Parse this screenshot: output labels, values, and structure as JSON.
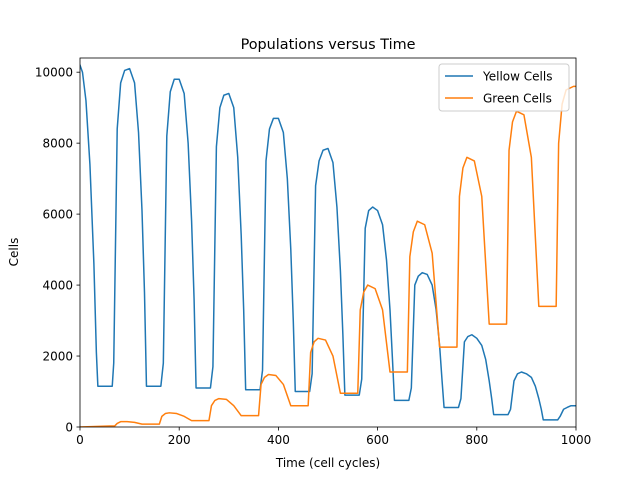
{
  "chart_data": {
    "type": "line",
    "title": "Populations versus Time",
    "xlabel": "Time (cell cycles)",
    "ylabel": "Cells",
    "xlim": [
      0,
      1000
    ],
    "ylim": [
      0,
      10400
    ],
    "xticks": [
      0,
      200,
      400,
      600,
      800,
      1000
    ],
    "xtick_labels": [
      "0",
      "200",
      "400",
      "600",
      "800",
      "1000"
    ],
    "yticks": [
      0,
      2000,
      4000,
      6000,
      8000,
      10000
    ],
    "ytick_labels": [
      "0",
      "2000",
      "4000",
      "6000",
      "8000",
      "10000"
    ],
    "grid": false,
    "legend_position": "upper right",
    "series": [
      {
        "name": "Yellow Cells",
        "color": "#1f77b4",
        "x": [
          0,
          5,
          12,
          20,
          28,
          33,
          36,
          40,
          50,
          62,
          65,
          68,
          75,
          82,
          90,
          100,
          110,
          118,
          125,
          130,
          134,
          140,
          160,
          163,
          168,
          175,
          182,
          190,
          200,
          210,
          218,
          225,
          230,
          234,
          240,
          260,
          263,
          268,
          275,
          282,
          290,
          300,
          310,
          318,
          325,
          330,
          334,
          340,
          360,
          363,
          368,
          375,
          382,
          390,
          400,
          410,
          418,
          425,
          430,
          434,
          440,
          460,
          463,
          468,
          475,
          482,
          490,
          500,
          510,
          518,
          525,
          530,
          534,
          540,
          560,
          563,
          568,
          575,
          582,
          590,
          600,
          610,
          618,
          625,
          630,
          634,
          640,
          660,
          663,
          668,
          675,
          682,
          690,
          700,
          710,
          718,
          725,
          730,
          734,
          740,
          760,
          763,
          768,
          775,
          782,
          790,
          800,
          810,
          818,
          825,
          830,
          834,
          840,
          860,
          863,
          868,
          875,
          882,
          890,
          900,
          910,
          918,
          925,
          930,
          934,
          940,
          960,
          963,
          968,
          975,
          982,
          990,
          1000
        ],
        "y": [
          10200,
          10000,
          9200,
          7400,
          4600,
          2100,
          1150,
          1150,
          1150,
          1150,
          1150,
          1800,
          8400,
          9700,
          10050,
          10100,
          9700,
          8300,
          6100,
          3800,
          1150,
          1150,
          1150,
          1150,
          1800,
          8200,
          9450,
          9800,
          9800,
          9400,
          8000,
          5800,
          3600,
          1100,
          1100,
          1100,
          1100,
          1700,
          7900,
          9000,
          9350,
          9400,
          9000,
          7600,
          5400,
          3300,
          1050,
          1050,
          1050,
          1050,
          1600,
          7500,
          8400,
          8700,
          8700,
          8300,
          7000,
          5000,
          3000,
          1000,
          1000,
          1000,
          1000,
          1500,
          6800,
          7500,
          7800,
          7850,
          7450,
          6200,
          4400,
          2600,
          900,
          900,
          900,
          900,
          1350,
          5600,
          6100,
          6200,
          6100,
          5700,
          4700,
          3300,
          1900,
          750,
          750,
          750,
          750,
          1100,
          4000,
          4250,
          4350,
          4300,
          4000,
          3300,
          2300,
          1300,
          550,
          550,
          550,
          550,
          800,
          2400,
          2550,
          2600,
          2500,
          2300,
          1900,
          1300,
          800,
          350,
          350,
          350,
          350,
          500,
          1300,
          1500,
          1550,
          1500,
          1400,
          1150,
          800,
          500,
          200,
          200,
          200,
          200,
          300,
          500,
          550,
          600,
          600
        ]
      },
      {
        "name": "Green Cells",
        "color": "#ff7f0e",
        "x": [
          0,
          60,
          70,
          75,
          82,
          95,
          110,
          125,
          130,
          160,
          165,
          172,
          180,
          195,
          210,
          225,
          230,
          260,
          265,
          272,
          280,
          295,
          310,
          325,
          330,
          360,
          365,
          372,
          380,
          395,
          410,
          425,
          430,
          460,
          465,
          472,
          480,
          495,
          510,
          525,
          530,
          560,
          565,
          572,
          580,
          595,
          610,
          625,
          630,
          660,
          665,
          672,
          680,
          695,
          710,
          725,
          730,
          760,
          765,
          772,
          780,
          795,
          810,
          825,
          830,
          860,
          865,
          872,
          880,
          895,
          910,
          925,
          930,
          960,
          965,
          972,
          980,
          995,
          1000
        ],
        "y": [
          0,
          30,
          30,
          100,
          150,
          150,
          130,
          80,
          80,
          80,
          300,
          380,
          400,
          380,
          300,
          180,
          180,
          180,
          600,
          750,
          800,
          780,
          600,
          320,
          320,
          320,
          1200,
          1400,
          1480,
          1450,
          1200,
          600,
          600,
          600,
          2100,
          2400,
          2500,
          2450,
          2000,
          950,
          950,
          950,
          3300,
          3800,
          4000,
          3900,
          3300,
          1550,
          1550,
          1550,
          4800,
          5500,
          5800,
          5700,
          4900,
          2250,
          2250,
          2250,
          6500,
          7300,
          7600,
          7500,
          6500,
          2900,
          2900,
          2900,
          7800,
          8600,
          8900,
          8800,
          7600,
          3400,
          3400,
          3400,
          8000,
          9100,
          9500,
          9600,
          9600
        ]
      }
    ]
  }
}
